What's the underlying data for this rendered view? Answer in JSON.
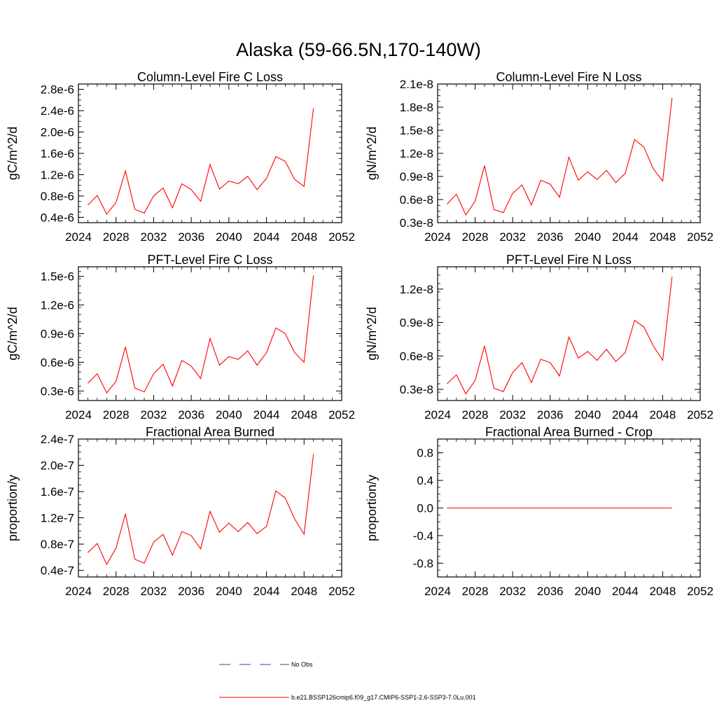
{
  "figure": {
    "title": "Alaska (59-66.5N,170-140W)",
    "series_color": "#ff0000",
    "obs_color": "#4040a0"
  },
  "legend": {
    "items": [
      {
        "label": "No Obs",
        "style": "dashed",
        "color": "#4040a0"
      },
      {
        "label": "b.e21.BSSP126cmip6.f09_g17.CMIP6-SSP1-2.6-SSP3-7.0Lu.001",
        "style": "solid",
        "color": "#ff0000"
      }
    ]
  },
  "chart_data": [
    {
      "type": "line",
      "title": "Column-Level Fire C Loss",
      "xlabel": "",
      "ylabel": "gC/m^2/d",
      "xlim": [
        2024,
        2052
      ],
      "ylim": [
        3e-07,
        2.9e-06
      ],
      "xticks": [
        2024,
        2028,
        2032,
        2036,
        2040,
        2044,
        2048,
        2052
      ],
      "yticks": [
        4e-07,
        8e-07,
        1.2e-06,
        1.6e-06,
        2e-06,
        2.4e-06,
        2.8e-06
      ],
      "ytick_labels": [
        "0.4e-6",
        "0.8e-6",
        "1.2e-6",
        "1.6e-6",
        "2.0e-6",
        "2.4e-6",
        "2.8e-6"
      ],
      "x": [
        2025,
        2026,
        2027,
        2028,
        2029,
        2030,
        2031,
        2032,
        2033,
        2034,
        2035,
        2036,
        2037,
        2038,
        2039,
        2040,
        2041,
        2042,
        2043,
        2044,
        2045,
        2046,
        2047,
        2048,
        2049
      ],
      "series": [
        {
          "name": "b.e21.BSSP126cmip6.f09_g17.CMIP6-SSP1-2.6-SSP3-7.0Lu.001",
          "values": [
            6.3e-07,
            8.1e-07,
            4.6e-07,
            6.8e-07,
            1.27e-06,
            5.5e-07,
            4.8e-07,
            8e-07,
            9.5e-07,
            5.8e-07,
            1.03e-06,
            9.2e-07,
            7e-07,
            1.39e-06,
            9.3e-07,
            1.08e-06,
            1.03e-06,
            1.17e-06,
            9.2e-07,
            1.13e-06,
            1.54e-06,
            1.45e-06,
            1.11e-06,
            9.8e-07,
            2.45e-06
          ]
        }
      ]
    },
    {
      "type": "line",
      "title": "Column-Level Fire N Loss",
      "xlabel": "",
      "ylabel": "gN/m^2/d",
      "xlim": [
        2024,
        2052
      ],
      "ylim": [
        3e-09,
        2.1e-08
      ],
      "xticks": [
        2024,
        2028,
        2032,
        2036,
        2040,
        2044,
        2048,
        2052
      ],
      "yticks": [
        3e-09,
        6e-09,
        9e-09,
        1.2e-08,
        1.5e-08,
        1.8e-08,
        2.1e-08
      ],
      "ytick_labels": [
        "0.3e-8",
        "0.6e-8",
        "0.9e-8",
        "1.2e-8",
        "1.5e-8",
        "1.8e-8",
        "2.1e-8"
      ],
      "x": [
        2025,
        2026,
        2027,
        2028,
        2029,
        2030,
        2031,
        2032,
        2033,
        2034,
        2035,
        2036,
        2037,
        2038,
        2039,
        2040,
        2041,
        2042,
        2043,
        2044,
        2045,
        2046,
        2047,
        2048,
        2049
      ],
      "series": [
        {
          "name": "b.e21.BSSP126cmip6.f09_g17.CMIP6-SSP1-2.6-SSP3-7.0Lu.001",
          "values": [
            5.4e-09,
            6.7e-09,
            4e-09,
            5.8e-09,
            1.04e-08,
            4.7e-09,
            4.3e-09,
            6.8e-09,
            7.9e-09,
            5.3e-09,
            8.5e-09,
            8e-09,
            6.3e-09,
            1.15e-08,
            8.5e-09,
            9.6e-09,
            8.6e-09,
            9.8e-09,
            8.2e-09,
            9.4e-09,
            1.38e-08,
            1.28e-08,
            1e-08,
            8.4e-09,
            1.92e-08
          ]
        }
      ]
    },
    {
      "type": "line",
      "title": "PFT-Level Fire C Loss",
      "xlabel": "",
      "ylabel": "gC/m^2/d",
      "xlim": [
        2024,
        2052
      ],
      "ylim": [
        2e-07,
        1.6e-06
      ],
      "xticks": [
        2024,
        2028,
        2032,
        2036,
        2040,
        2044,
        2048,
        2052
      ],
      "yticks": [
        3e-07,
        6e-07,
        9e-07,
        1.2e-06,
        1.5e-06
      ],
      "ytick_labels": [
        "0.3e-6",
        "0.6e-6",
        "0.9e-6",
        "1.2e-6",
        "1.5e-6"
      ],
      "x": [
        2025,
        2026,
        2027,
        2028,
        2029,
        2030,
        2031,
        2032,
        2033,
        2034,
        2035,
        2036,
        2037,
        2038,
        2039,
        2040,
        2041,
        2042,
        2043,
        2044,
        2045,
        2046,
        2047,
        2048,
        2049
      ],
      "series": [
        {
          "name": "b.e21.BSSP126cmip6.f09_g17.CMIP6-SSP1-2.6-SSP3-7.0Lu.001",
          "values": [
            3.8e-07,
            4.8e-07,
            2.8e-07,
            4e-07,
            7.6e-07,
            3.3e-07,
            2.9e-07,
            4.8e-07,
            5.8e-07,
            3.5e-07,
            6.2e-07,
            5.6e-07,
            4.3e-07,
            8.5e-07,
            5.7e-07,
            6.6e-07,
            6.3e-07,
            7.2e-07,
            5.7e-07,
            7e-07,
            9.6e-07,
            9e-07,
            7e-07,
            6e-07,
            1.51e-06
          ]
        }
      ]
    },
    {
      "type": "line",
      "title": "PFT-Level Fire N Loss",
      "xlabel": "",
      "ylabel": "gN/m^2/d",
      "xlim": [
        2024,
        2052
      ],
      "ylim": [
        2e-09,
        1.4e-08
      ],
      "xticks": [
        2024,
        2028,
        2032,
        2036,
        2040,
        2044,
        2048,
        2052
      ],
      "yticks": [
        3e-09,
        6e-09,
        9e-09,
        1.2e-08
      ],
      "ytick_labels": [
        "0.3e-8",
        "0.6e-8",
        "0.9e-8",
        "1.2e-8"
      ],
      "x": [
        2025,
        2026,
        2027,
        2028,
        2029,
        2030,
        2031,
        2032,
        2033,
        2034,
        2035,
        2036,
        2037,
        2038,
        2039,
        2040,
        2041,
        2042,
        2043,
        2044,
        2045,
        2046,
        2047,
        2048,
        2049
      ],
      "series": [
        {
          "name": "b.e21.BSSP126cmip6.f09_g17.CMIP6-SSP1-2.6-SSP3-7.0Lu.001",
          "values": [
            3.5e-09,
            4.3e-09,
            2.6e-09,
            3.8e-09,
            6.9e-09,
            3.1e-09,
            2.8e-09,
            4.5e-09,
            5.4e-09,
            3.6e-09,
            5.7e-09,
            5.4e-09,
            4.2e-09,
            7.7e-09,
            5.8e-09,
            6.4e-09,
            5.6e-09,
            6.6e-09,
            5.5e-09,
            6.3e-09,
            9.2e-09,
            8.6e-09,
            6.9e-09,
            5.6e-09,
            1.31e-08
          ]
        }
      ]
    },
    {
      "type": "line",
      "title": "Fractional Area Burned",
      "xlabel": "",
      "ylabel": "proportion/y",
      "xlim": [
        2024,
        2052
      ],
      "ylim": [
        3e-08,
        2.4e-07
      ],
      "xticks": [
        2024,
        2028,
        2032,
        2036,
        2040,
        2044,
        2048,
        2052
      ],
      "yticks": [
        4e-08,
        8e-08,
        1.2e-07,
        1.6e-07,
        2e-07,
        2.4e-07
      ],
      "ytick_labels": [
        "0.4e-7",
        "0.8e-7",
        "1.2e-7",
        "1.6e-7",
        "2.0e-7",
        "2.4e-7"
      ],
      "x": [
        2025,
        2026,
        2027,
        2028,
        2029,
        2030,
        2031,
        2032,
        2033,
        2034,
        2035,
        2036,
        2037,
        2038,
        2039,
        2040,
        2041,
        2042,
        2043,
        2044,
        2045,
        2046,
        2047,
        2048,
        2049
      ],
      "series": [
        {
          "name": "b.e21.BSSP126cmip6.f09_g17.CMIP6-SSP1-2.6-SSP3-7.0Lu.001",
          "values": [
            6.7e-08,
            8.1e-08,
            4.9e-08,
            7.4e-08,
            1.26e-07,
            5.7e-08,
            5.1e-08,
            8.3e-08,
            9.5e-08,
            6.3e-08,
            9.9e-08,
            9.3e-08,
            7.3e-08,
            1.3e-07,
            9.8e-08,
            1.12e-07,
            9.9e-08,
            1.13e-07,
            9.6e-08,
            1.07e-07,
            1.61e-07,
            1.5e-07,
            1.18e-07,
            9.5e-08,
            2.17e-07
          ]
        }
      ]
    },
    {
      "type": "line",
      "title": "Fractional Area Burned - Crop",
      "xlabel": "",
      "ylabel": "proportion/y",
      "xlim": [
        2024,
        2052
      ],
      "ylim": [
        -1.0,
        1.0
      ],
      "xticks": [
        2024,
        2028,
        2032,
        2036,
        2040,
        2044,
        2048,
        2052
      ],
      "yticks": [
        -0.8,
        -0.4,
        0.0,
        0.4,
        0.8
      ],
      "ytick_labels": [
        "-0.8",
        "-0.4",
        "0.0",
        "0.4",
        "0.8"
      ],
      "x": [
        2025,
        2026,
        2027,
        2028,
        2029,
        2030,
        2031,
        2032,
        2033,
        2034,
        2035,
        2036,
        2037,
        2038,
        2039,
        2040,
        2041,
        2042,
        2043,
        2044,
        2045,
        2046,
        2047,
        2048,
        2049
      ],
      "series": [
        {
          "name": "b.e21.BSSP126cmip6.f09_g17.CMIP6-SSP1-2.6-SSP3-7.0Lu.001",
          "values": [
            0,
            0,
            0,
            0,
            0,
            0,
            0,
            0,
            0,
            0,
            0,
            0,
            0,
            0,
            0,
            0,
            0,
            0,
            0,
            0,
            0,
            0,
            0,
            0,
            0
          ]
        }
      ]
    }
  ]
}
